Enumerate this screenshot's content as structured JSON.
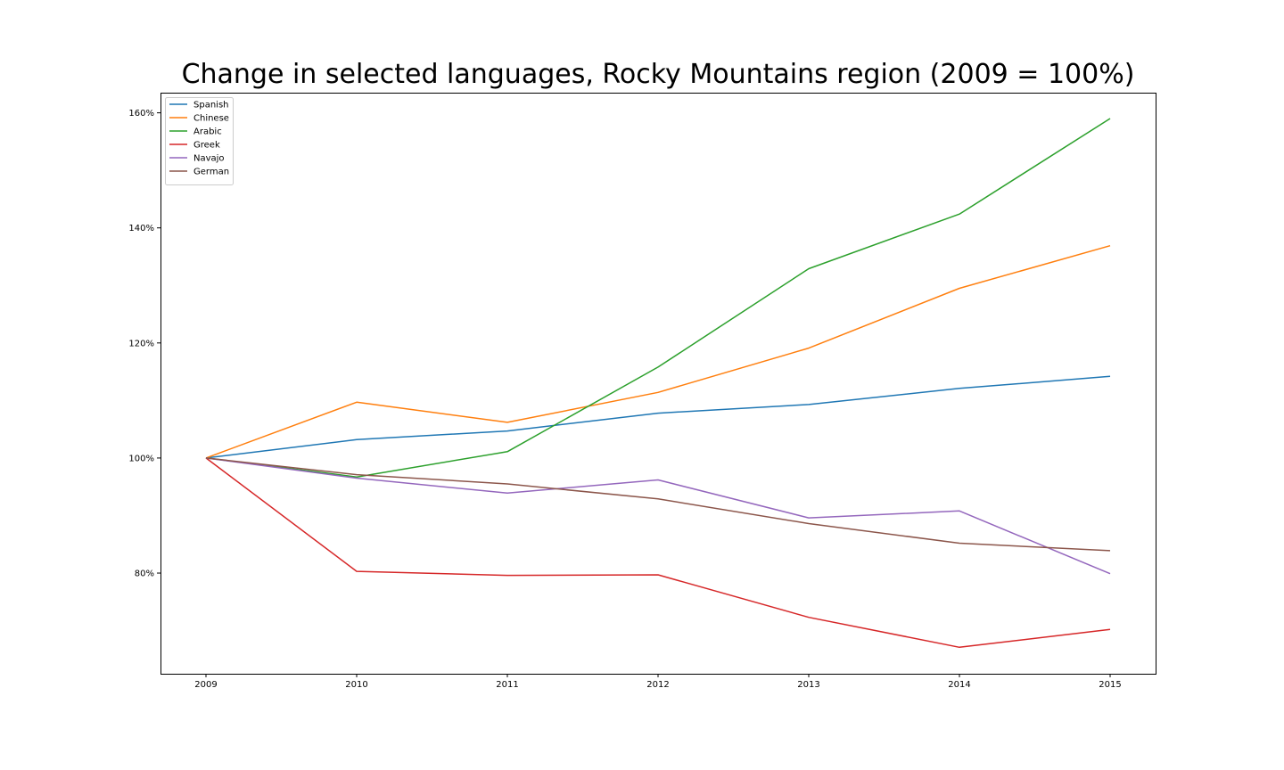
{
  "chart_data": {
    "type": "line",
    "title": "Change in selected languages, Rocky Mountains region (2009 = 100%)",
    "xlabel": "",
    "ylabel": "",
    "x": [
      "2009",
      "2010",
      "2011",
      "2012",
      "2013",
      "2014",
      "2015"
    ],
    "x_tick_labels": [
      "2009",
      "2010",
      "2011",
      "2012",
      "2013",
      "2014",
      "2015"
    ],
    "y_ticks": [
      80,
      100,
      120,
      140,
      160
    ],
    "y_tick_labels": [
      "80%",
      "100%",
      "120%",
      "140%",
      "160%"
    ],
    "ylim": [
      62.5,
      163.5
    ],
    "grid": false,
    "legend_position": "top-left",
    "series": [
      {
        "name": "Spanish",
        "color": "#1f77b4",
        "values": [
          100,
          103.2,
          104.7,
          107.8,
          109.3,
          112.1,
          114.2
        ]
      },
      {
        "name": "Chinese",
        "color": "#ff7f0e",
        "values": [
          100,
          109.7,
          106.2,
          111.4,
          119.1,
          129.5,
          136.9
        ]
      },
      {
        "name": "Arabic",
        "color": "#2ca02c",
        "values": [
          100,
          96.7,
          101.1,
          115.8,
          132.9,
          142.4,
          159.0
        ]
      },
      {
        "name": "Greek",
        "color": "#d62728",
        "values": [
          100,
          80.3,
          79.6,
          79.7,
          72.3,
          67.1,
          70.2
        ]
      },
      {
        "name": "Navajo",
        "color": "#9467bd",
        "values": [
          100,
          96.5,
          93.9,
          96.2,
          89.6,
          90.8,
          79.9
        ]
      },
      {
        "name": "German",
        "color": "#8c564b",
        "values": [
          100,
          97.1,
          95.5,
          92.9,
          88.6,
          85.2,
          83.9
        ]
      }
    ]
  }
}
